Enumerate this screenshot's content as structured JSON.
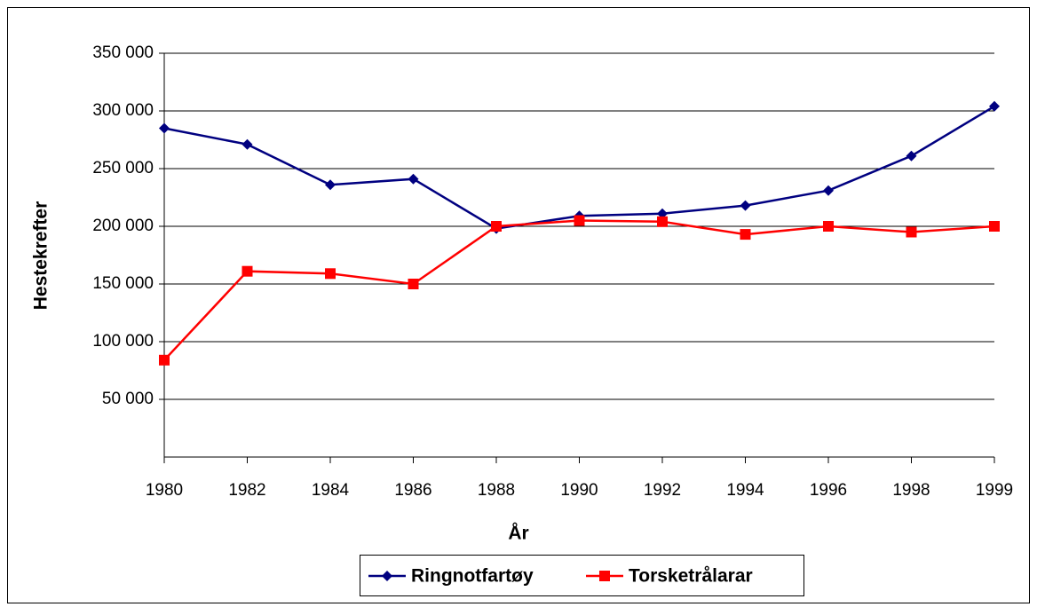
{
  "chart_data": {
    "type": "line",
    "x_title": "År",
    "y_title": "Hestekrefter",
    "categories": [
      "1980",
      "1982",
      "1984",
      "1986",
      "1988",
      "1990",
      "1992",
      "1994",
      "1996",
      "1998",
      "1999"
    ],
    "series": [
      {
        "name": "Ringnotfartøy",
        "color": "#000080",
        "marker": "diamond",
        "values": [
          285000,
          271000,
          236000,
          241000,
          198000,
          209000,
          211000,
          218000,
          231000,
          261000,
          304000
        ]
      },
      {
        "name": "Torsketrålarar",
        "color": "#ff0000",
        "marker": "square",
        "values": [
          84000,
          161000,
          159000,
          150000,
          200000,
          205000,
          204000,
          193000,
          200000,
          195000,
          200000
        ]
      }
    ],
    "ylim": [
      0,
      350000
    ],
    "yticks": [
      {
        "value": 50000,
        "label": "50 000"
      },
      {
        "value": 100000,
        "label": "100 000"
      },
      {
        "value": 150000,
        "label": "150 000"
      },
      {
        "value": 200000,
        "label": "200 000"
      },
      {
        "value": 250000,
        "label": "250 000"
      },
      {
        "value": 300000,
        "label": "300 000"
      },
      {
        "value": 350000,
        "label": "350 000"
      }
    ],
    "grid": true,
    "legend": "bottom"
  }
}
